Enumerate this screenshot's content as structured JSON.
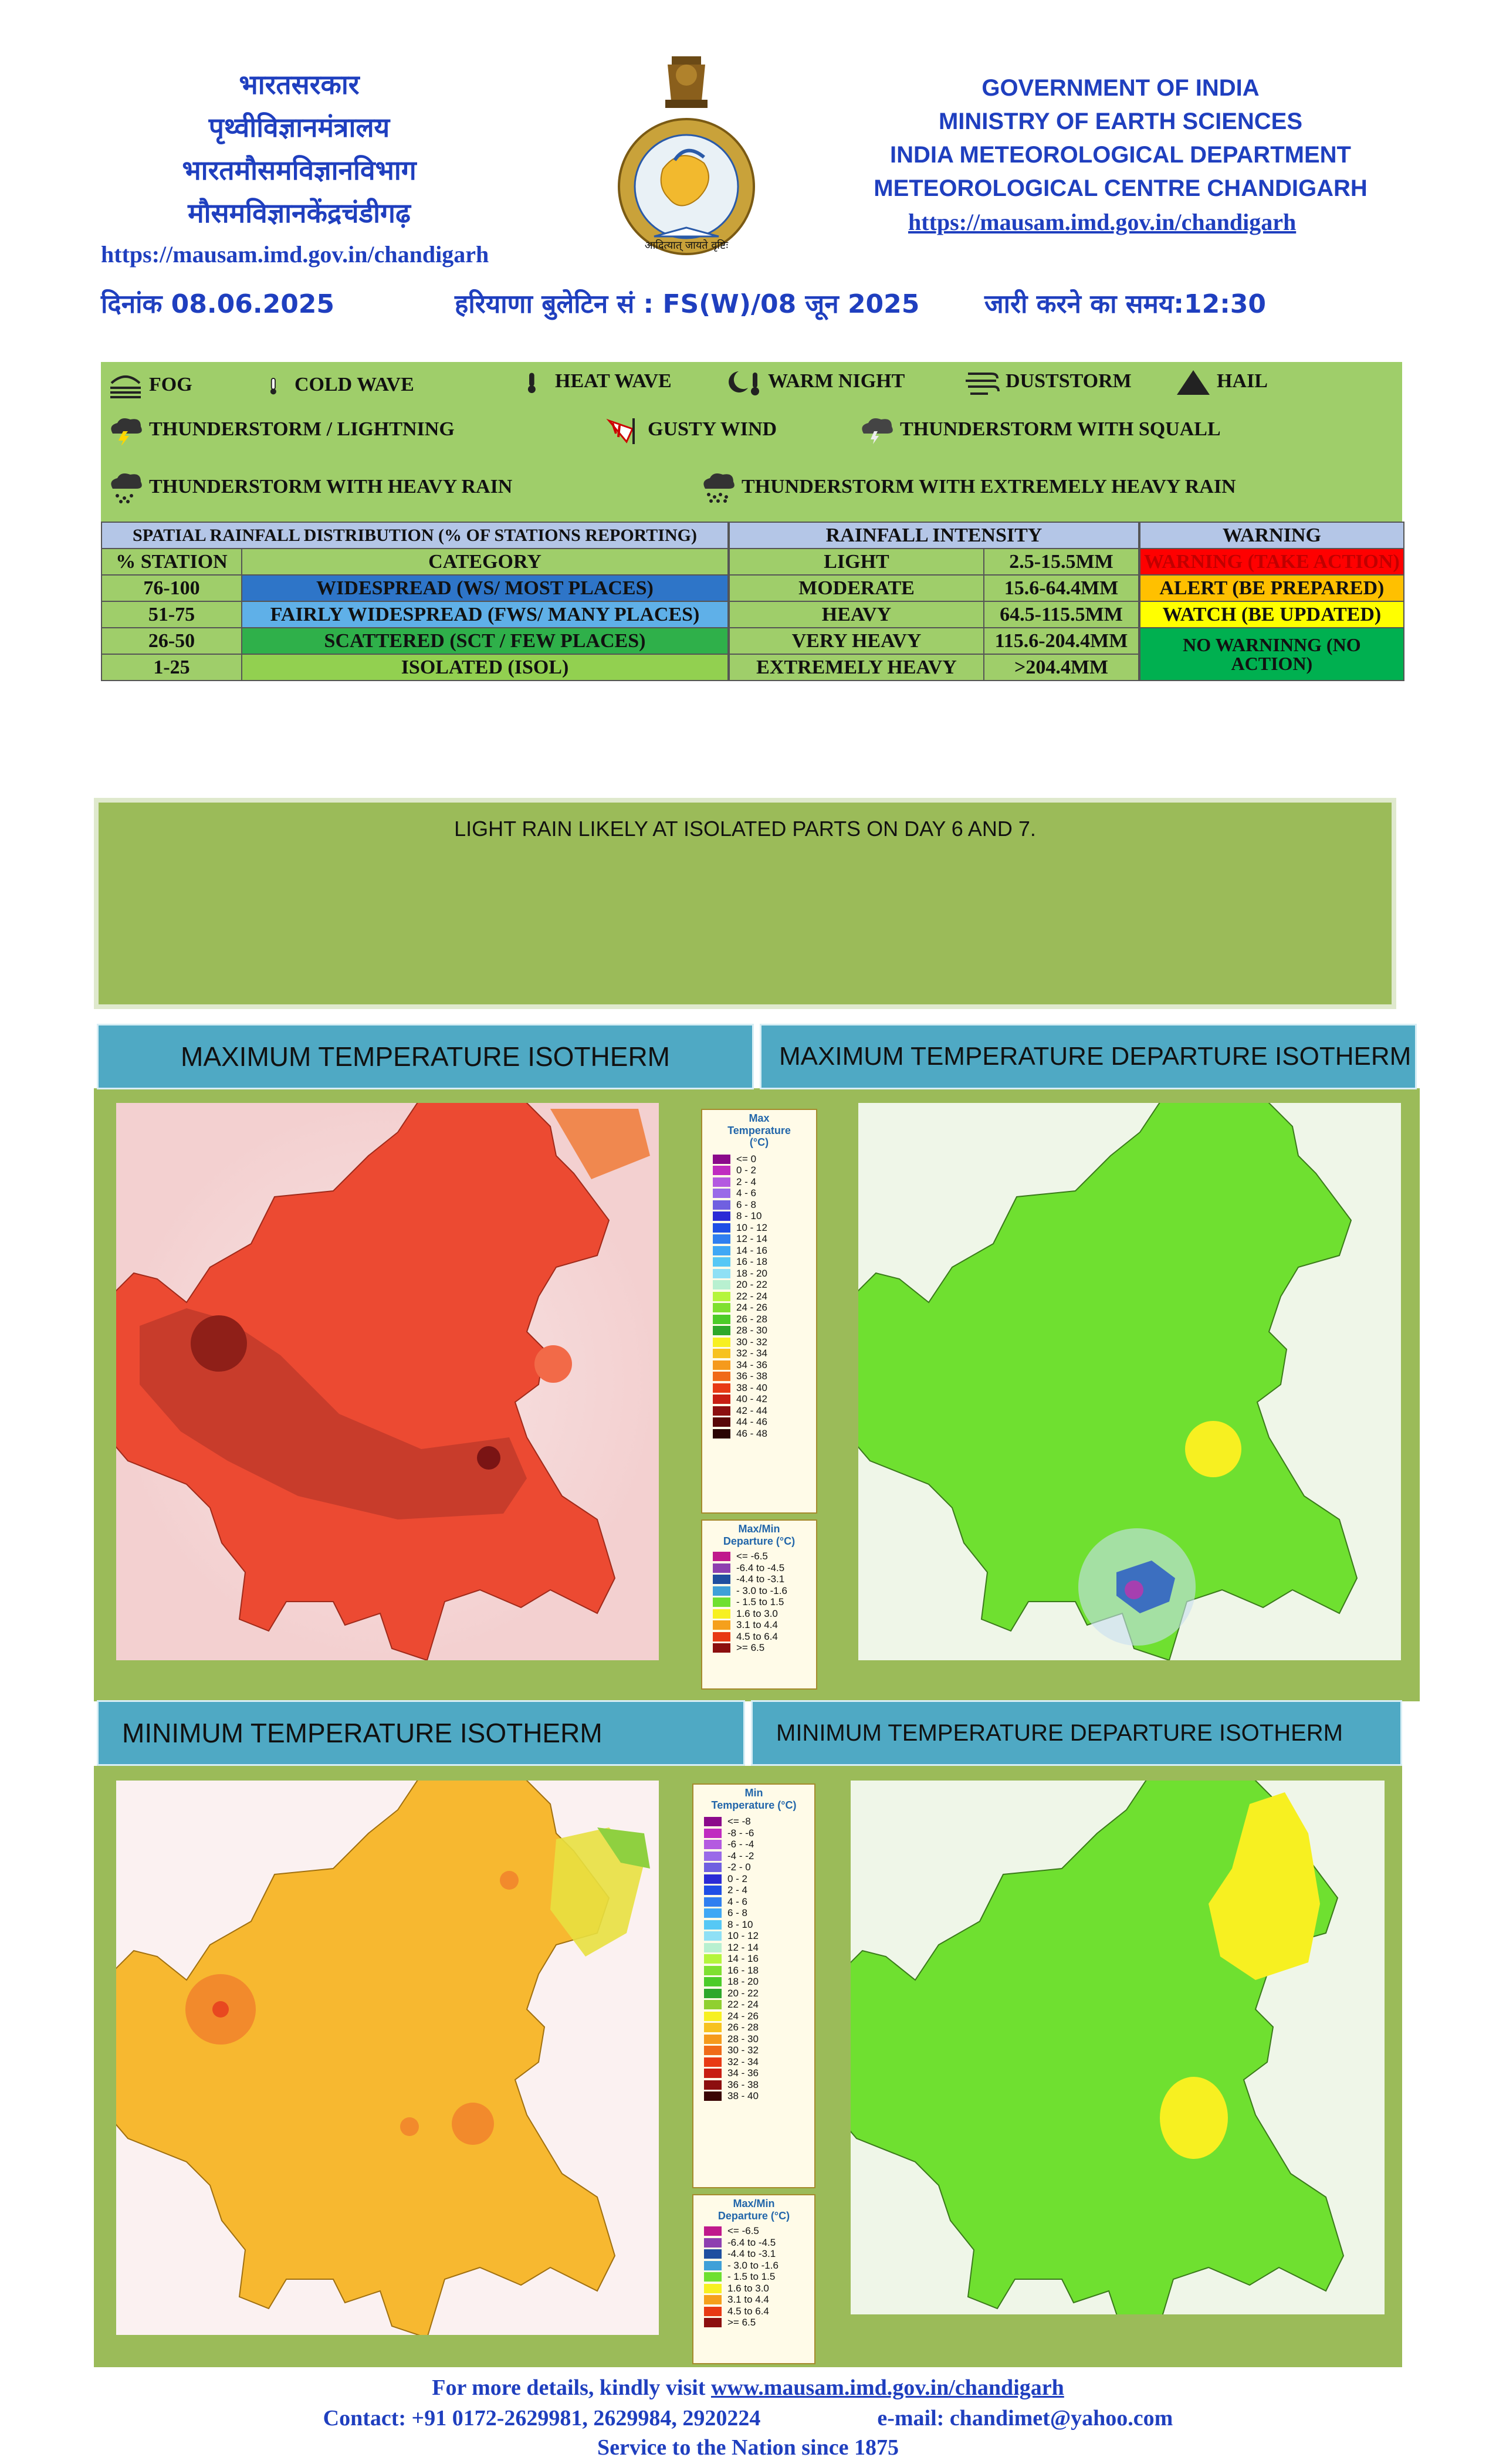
{
  "header": {
    "hindi_lines": [
      "भारतसरकार",
      "पृथ्वीविज्ञानमंत्रालय",
      "भारतमौसमविज्ञानविभाग",
      "मौसमविज्ञानकेंद्रचंडीगढ़"
    ],
    "url_left": "https://mausam.imd.gov.in/chandigarh",
    "english_lines": [
      "GOVERNMENT OF INDIA",
      "MINISTRY OF EARTH SCIENCES",
      "INDIA METEOROLOGICAL DEPARTMENT",
      "METEOROLOGICAL CENTRE CHANDIGARH"
    ],
    "url_right": "https://mausam.imd.gov.in/chandigarh",
    "emblem_text": "भारत मौसम विज्ञान विभाग",
    "emblem_motto": "आदित्यात् जायते वृष्टिः",
    "date_label": "दिनांक 08.06.2025",
    "bulletin_label": "हरियाणा बुलेटिन सं : FS(W)/08 जून 2025",
    "issue_time_label": "जारी करने का समय:12:30"
  },
  "legend": {
    "fog": "FOG",
    "cold_wave": "COLD WAVE",
    "heat_wave": "HEAT WAVE",
    "warm_night": "WARM NIGHT",
    "duststorm": "DUSTSTORM",
    "hail": "HAIL",
    "thunderstorm_lightning": "THUNDERSTORM / LIGHTNING",
    "gusty_wind": "GUSTY WIND",
    "thunderstorm_squall": "THUNDERSTORM WITH SQUALL",
    "thunderstorm_heavy_rain": "THUNDERSTORM WITH HEAVY RAIN",
    "thunderstorm_extremely_heavy_rain": "THUNDERSTORM WITH EXTREMELY HEAVY RAIN"
  },
  "rainfall_table": {
    "spatial_header": "SPATIAL RAINFALL DISTRIBUTION (% OF STATIONS REPORTING)",
    "intensity_header": "RAINFALL INTENSITY",
    "warning_header": "WARNING",
    "col_station": "% STATION",
    "col_category": "CATEGORY",
    "spatial_rows": [
      {
        "station": "76-100",
        "category": "WIDESPREAD (WS/ MOST PLACES)"
      },
      {
        "station": "51-75",
        "category": "FAIRLY WIDESPREAD (FWS/ MANY PLACES)"
      },
      {
        "station": "26-50",
        "category": "SCATTERED (SCT / FEW PLACES)"
      },
      {
        "station": "1-25",
        "category": "ISOLATED (ISOL)"
      }
    ],
    "intensity_rows": [
      {
        "name": "LIGHT",
        "range": "2.5-15.5MM"
      },
      {
        "name": "MODERATE",
        "range": "15.6-64.4MM"
      },
      {
        "name": "HEAVY",
        "range": "64.5-115.5MM"
      },
      {
        "name": "VERY HEAVY",
        "range": "115.6-204.4MM"
      },
      {
        "name": "EXTREMELY HEAVY",
        "range": ">204.4MM"
      }
    ],
    "warnings": [
      {
        "label": "WARNING (TAKE ACTION)",
        "color": "#ff0000"
      },
      {
        "label": "ALERT (BE PREPARED)",
        "color": "#ffc000"
      },
      {
        "label": "WATCH (BE UPDATED)",
        "color": "#ffff00"
      },
      {
        "label": "NO WARNINNG (NO ACTION)",
        "color": "#00b050"
      }
    ]
  },
  "forecast_text": "LIGHT RAIN LIKELY AT ISOLATED PARTS ON DAY 6 AND 7.",
  "panels": {
    "max_temp": "MAXIMUM TEMPERATURE ISOTHERM",
    "max_dep": "MAXIMUM TEMPERATURE DEPARTURE ISOTHERM",
    "min_temp": "MINIMUM TEMPERATURE ISOTHERM",
    "min_dep": "MINIMUM TEMPERATURE DEPARTURE ISOTHERM"
  },
  "scales": {
    "max_temp_header": "Max\nTemperature\n(°C)",
    "max_temp_rows": [
      {
        "label": "<= 0",
        "color": "#8b0a8b"
      },
      {
        "label": "0 - 2",
        "color": "#c02cc0"
      },
      {
        "label": "2 - 4",
        "color": "#b45ae0"
      },
      {
        "label": "4 - 6",
        "color": "#9a6ae8"
      },
      {
        "label": "6 - 8",
        "color": "#7060e0"
      },
      {
        "label": "8 - 10",
        "color": "#2b2bd6"
      },
      {
        "label": "10 - 12",
        "color": "#1f4fe6"
      },
      {
        "label": "12 - 14",
        "color": "#2f7ff0"
      },
      {
        "label": "14 - 16",
        "color": "#3fa8f5"
      },
      {
        "label": "16 - 18",
        "color": "#56c8f5"
      },
      {
        "label": "18 - 20",
        "color": "#8fe0f5"
      },
      {
        "label": "20 - 22",
        "color": "#b8f0d0"
      },
      {
        "label": "22 - 24",
        "color": "#b5f53c"
      },
      {
        "label": "24 - 26",
        "color": "#7fe030"
      },
      {
        "label": "26 - 28",
        "color": "#4ccc28"
      },
      {
        "label": "28 - 30",
        "color": "#2ea82a"
      },
      {
        "label": "30 - 32",
        "color": "#f7f021"
      },
      {
        "label": "32 - 34",
        "color": "#f7c21f"
      },
      {
        "label": "34 - 36",
        "color": "#f59a1c"
      },
      {
        "label": "36 - 38",
        "color": "#f06a18"
      },
      {
        "label": "38 - 40",
        "color": "#e83a14"
      },
      {
        "label": "40 - 42",
        "color": "#c81e12"
      },
      {
        "label": "42 - 44",
        "color": "#8c0f0f"
      },
      {
        "label": "44 - 46",
        "color": "#5a0808"
      },
      {
        "label": "46 - 48",
        "color": "#2a0404"
      }
    ],
    "max_dep_header": "Max/Min\nDeparture (°C)",
    "dep_rows": [
      {
        "label": "<= -6.5",
        "color": "#c0198c"
      },
      {
        "label": "-6.4 to -4.5",
        "color": "#8e3fb0"
      },
      {
        "label": "-4.4 to -3.1",
        "color": "#1f4fa0"
      },
      {
        "label": "- 3.0 to -1.6",
        "color": "#3fa0d8"
      },
      {
        "label": "- 1.5 to 1.5",
        "color": "#6fe030"
      },
      {
        "label": "1.6 to 3.0",
        "color": "#f7f021"
      },
      {
        "label": "3.1 to 4.4",
        "color": "#f5a01c"
      },
      {
        "label": "4.5 to 6.4",
        "color": "#e83a14"
      },
      {
        "label": ">= 6.5",
        "color": "#8c0f0f"
      }
    ],
    "min_temp_header": "Min\nTemperature (°C)",
    "min_temp_rows": [
      {
        "label": "<= -8",
        "color": "#8b0a8b"
      },
      {
        "label": "-8 - -6",
        "color": "#c02cc0"
      },
      {
        "label": "-6 - -4",
        "color": "#b45ae0"
      },
      {
        "label": "-4 - -2",
        "color": "#9a6ae8"
      },
      {
        "label": "-2 - 0",
        "color": "#7060e0"
      },
      {
        "label": "0 - 2",
        "color": "#2b2bd6"
      },
      {
        "label": "2 - 4",
        "color": "#1f4fe6"
      },
      {
        "label": "4 - 6",
        "color": "#2f7ff0"
      },
      {
        "label": "6 - 8",
        "color": "#3fa8f5"
      },
      {
        "label": "8 - 10",
        "color": "#56c8f5"
      },
      {
        "label": "10 - 12",
        "color": "#8fe0f5"
      },
      {
        "label": "12 - 14",
        "color": "#b8f0d0"
      },
      {
        "label": "14 - 16",
        "color": "#b5f53c"
      },
      {
        "label": "16 - 18",
        "color": "#7fe030"
      },
      {
        "label": "18 - 20",
        "color": "#4ccc28"
      },
      {
        "label": "20 - 22",
        "color": "#2ea82a"
      },
      {
        "label": "22 - 24",
        "color": "#90d030"
      },
      {
        "label": "24 - 26",
        "color": "#f7f021"
      },
      {
        "label": "26 - 28",
        "color": "#f7c21f"
      },
      {
        "label": "28 - 30",
        "color": "#f59a1c"
      },
      {
        "label": "30 - 32",
        "color": "#f06a18"
      },
      {
        "label": "32 - 34",
        "color": "#e83a14"
      },
      {
        "label": "34 - 36",
        "color": "#c81e12"
      },
      {
        "label": "36 - 38",
        "color": "#8c0f0f"
      },
      {
        "label": "38 - 40",
        "color": "#3a0505"
      }
    ],
    "min_dep_header": "Max/Min\nDeparture (°C)"
  },
  "footer": {
    "line1_prefix": "For more details, kindly visit ",
    "line1_link": "www.mausam.imd.gov.in/chandigarh",
    "line2_contact": "Contact: +91 0172-2629981, 2629984, 2920224",
    "line2_email": "e-mail: chandimet@yahoo.com",
    "line3": "Service to the Nation since 1875"
  }
}
